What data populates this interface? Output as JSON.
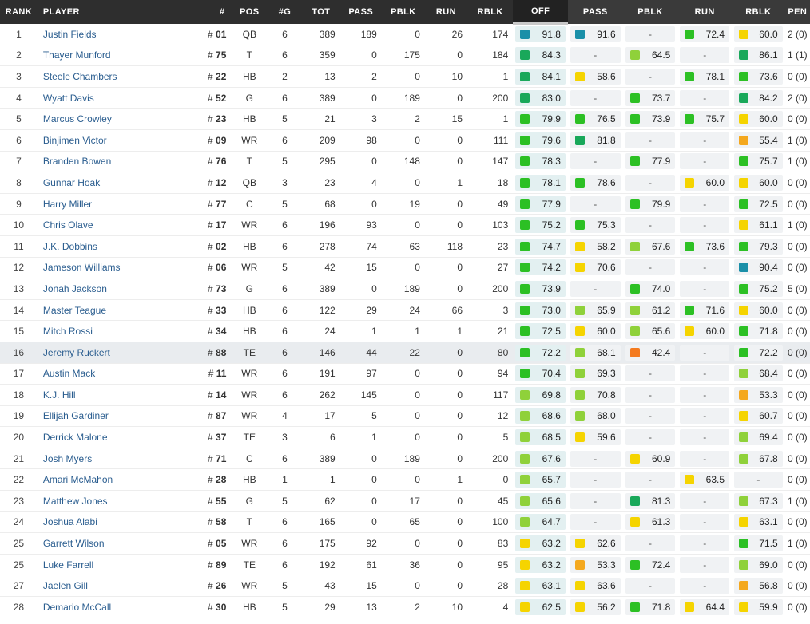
{
  "headers": {
    "rank": "RANK",
    "player": "PLAYER",
    "jersey": "#",
    "pos": "POS",
    "g": "#G",
    "tot": "TOT",
    "pass": "PASS",
    "pblk": "PBLK",
    "run": "RUN",
    "rblk": "RBLK",
    "off_grade": "OFF",
    "pass_grade": "PASS",
    "pblk_grade": "PBLK",
    "run_grade": "RUN",
    "rblk_grade": "RBLK",
    "pen": "PEN"
  },
  "colors": {
    "elite": "#1a8fa8",
    "high": "#19a85a",
    "good": "#2cc024",
    "above": "#8fd13a",
    "avg": "#f5d400",
    "below": "#f4a81e",
    "poor": "#f47b20",
    "header_bg": "#2e2e2e",
    "player_link": "#2a5d8f"
  },
  "rows": [
    {
      "rank": "1",
      "player": "Justin Fields",
      "jersey": "# 01",
      "pos": "QB",
      "g": "6",
      "tot": "389",
      "pass": "189",
      "pblk": "0",
      "run": "26",
      "rblk": "174",
      "off": "91.8",
      "off_c": "elite",
      "pass_g": "91.6",
      "pass_c": "elite",
      "pblk_g": "-",
      "pblk_c": "",
      "run_g": "72.4",
      "run_c": "good",
      "rblk_g": "60.0",
      "rblk_c": "avg",
      "pen": "2 (0)"
    },
    {
      "rank": "2",
      "player": "Thayer Munford",
      "jersey": "# 75",
      "pos": "T",
      "g": "6",
      "tot": "359",
      "pass": "0",
      "pblk": "175",
      "run": "0",
      "rblk": "184",
      "off": "84.3",
      "off_c": "high",
      "pass_g": "-",
      "pass_c": "",
      "pblk_g": "64.5",
      "pblk_c": "above",
      "run_g": "-",
      "run_c": "",
      "rblk_g": "86.1",
      "rblk_c": "high",
      "pen": "1 (1)"
    },
    {
      "rank": "3",
      "player": "Steele Chambers",
      "jersey": "# 22",
      "pos": "HB",
      "g": "2",
      "tot": "13",
      "pass": "2",
      "pblk": "0",
      "run": "10",
      "rblk": "1",
      "off": "84.1",
      "off_c": "high",
      "pass_g": "58.6",
      "pass_c": "avg",
      "pblk_g": "-",
      "pblk_c": "",
      "run_g": "78.1",
      "run_c": "good",
      "rblk_g": "73.6",
      "rblk_c": "good",
      "pen": "0 (0)"
    },
    {
      "rank": "4",
      "player": "Wyatt Davis",
      "jersey": "# 52",
      "pos": "G",
      "g": "6",
      "tot": "389",
      "pass": "0",
      "pblk": "189",
      "run": "0",
      "rblk": "200",
      "off": "83.0",
      "off_c": "high",
      "pass_g": "-",
      "pass_c": "",
      "pblk_g": "73.7",
      "pblk_c": "good",
      "run_g": "-",
      "run_c": "",
      "rblk_g": "84.2",
      "rblk_c": "high",
      "pen": "2 (0)"
    },
    {
      "rank": "5",
      "player": "Marcus Crowley",
      "jersey": "# 23",
      "pos": "HB",
      "g": "5",
      "tot": "21",
      "pass": "3",
      "pblk": "2",
      "run": "15",
      "rblk": "1",
      "off": "79.9",
      "off_c": "good",
      "pass_g": "76.5",
      "pass_c": "good",
      "pblk_g": "73.9",
      "pblk_c": "good",
      "run_g": "75.7",
      "run_c": "good",
      "rblk_g": "60.0",
      "rblk_c": "avg",
      "pen": "0 (0)"
    },
    {
      "rank": "6",
      "player": "Binjimen Victor",
      "jersey": "# 09",
      "pos": "WR",
      "g": "6",
      "tot": "209",
      "pass": "98",
      "pblk": "0",
      "run": "0",
      "rblk": "111",
      "off": "79.6",
      "off_c": "good",
      "pass_g": "81.8",
      "pass_c": "high",
      "pblk_g": "-",
      "pblk_c": "",
      "run_g": "-",
      "run_c": "",
      "rblk_g": "55.4",
      "rblk_c": "below",
      "pen": "1 (0)"
    },
    {
      "rank": "7",
      "player": "Branden Bowen",
      "jersey": "# 76",
      "pos": "T",
      "g": "5",
      "tot": "295",
      "pass": "0",
      "pblk": "148",
      "run": "0",
      "rblk": "147",
      "off": "78.3",
      "off_c": "good",
      "pass_g": "-",
      "pass_c": "",
      "pblk_g": "77.9",
      "pblk_c": "good",
      "run_g": "-",
      "run_c": "",
      "rblk_g": "75.7",
      "rblk_c": "good",
      "pen": "1 (0)"
    },
    {
      "rank": "8",
      "player": "Gunnar Hoak",
      "jersey": "# 12",
      "pos": "QB",
      "g": "3",
      "tot": "23",
      "pass": "4",
      "pblk": "0",
      "run": "1",
      "rblk": "18",
      "off": "78.1",
      "off_c": "good",
      "pass_g": "78.6",
      "pass_c": "good",
      "pblk_g": "-",
      "pblk_c": "",
      "run_g": "60.0",
      "run_c": "avg",
      "rblk_g": "60.0",
      "rblk_c": "avg",
      "pen": "0 (0)"
    },
    {
      "rank": "9",
      "player": "Harry Miller",
      "jersey": "# 77",
      "pos": "C",
      "g": "5",
      "tot": "68",
      "pass": "0",
      "pblk": "19",
      "run": "0",
      "rblk": "49",
      "off": "77.9",
      "off_c": "good",
      "pass_g": "-",
      "pass_c": "",
      "pblk_g": "79.9",
      "pblk_c": "good",
      "run_g": "-",
      "run_c": "",
      "rblk_g": "72.5",
      "rblk_c": "good",
      "pen": "0 (0)"
    },
    {
      "rank": "10",
      "player": "Chris Olave",
      "jersey": "# 17",
      "pos": "WR",
      "g": "6",
      "tot": "196",
      "pass": "93",
      "pblk": "0",
      "run": "0",
      "rblk": "103",
      "off": "75.2",
      "off_c": "good",
      "pass_g": "75.3",
      "pass_c": "good",
      "pblk_g": "-",
      "pblk_c": "",
      "run_g": "-",
      "run_c": "",
      "rblk_g": "61.1",
      "rblk_c": "avg",
      "pen": "1 (0)"
    },
    {
      "rank": "11",
      "player": "J.K. Dobbins",
      "jersey": "# 02",
      "pos": "HB",
      "g": "6",
      "tot": "278",
      "pass": "74",
      "pblk": "63",
      "run": "118",
      "rblk": "23",
      "off": "74.7",
      "off_c": "good",
      "pass_g": "58.2",
      "pass_c": "avg",
      "pblk_g": "67.6",
      "pblk_c": "above",
      "run_g": "73.6",
      "run_c": "good",
      "rblk_g": "79.3",
      "rblk_c": "good",
      "pen": "0 (0)"
    },
    {
      "rank": "12",
      "player": "Jameson Williams",
      "jersey": "# 06",
      "pos": "WR",
      "g": "5",
      "tot": "42",
      "pass": "15",
      "pblk": "0",
      "run": "0",
      "rblk": "27",
      "off": "74.2",
      "off_c": "good",
      "pass_g": "70.6",
      "pass_c": "avg",
      "pblk_g": "-",
      "pblk_c": "",
      "run_g": "-",
      "run_c": "",
      "rblk_g": "90.4",
      "rblk_c": "elite",
      "pen": "0 (0)"
    },
    {
      "rank": "13",
      "player": "Jonah Jackson",
      "jersey": "# 73",
      "pos": "G",
      "g": "6",
      "tot": "389",
      "pass": "0",
      "pblk": "189",
      "run": "0",
      "rblk": "200",
      "off": "73.9",
      "off_c": "good",
      "pass_g": "-",
      "pass_c": "",
      "pblk_g": "74.0",
      "pblk_c": "good",
      "run_g": "-",
      "run_c": "",
      "rblk_g": "75.2",
      "rblk_c": "good",
      "pen": "5 (0)"
    },
    {
      "rank": "14",
      "player": "Master Teague",
      "jersey": "# 33",
      "pos": "HB",
      "g": "6",
      "tot": "122",
      "pass": "29",
      "pblk": "24",
      "run": "66",
      "rblk": "3",
      "off": "73.0",
      "off_c": "good",
      "pass_g": "65.9",
      "pass_c": "above",
      "pblk_g": "61.2",
      "pblk_c": "above",
      "run_g": "71.6",
      "run_c": "good",
      "rblk_g": "60.0",
      "rblk_c": "avg",
      "pen": "0 (0)"
    },
    {
      "rank": "15",
      "player": "Mitch Rossi",
      "jersey": "# 34",
      "pos": "HB",
      "g": "6",
      "tot": "24",
      "pass": "1",
      "pblk": "1",
      "run": "1",
      "rblk": "21",
      "off": "72.5",
      "off_c": "good",
      "pass_g": "60.0",
      "pass_c": "avg",
      "pblk_g": "65.6",
      "pblk_c": "above",
      "run_g": "60.0",
      "run_c": "avg",
      "rblk_g": "71.8",
      "rblk_c": "good",
      "pen": "0 (0)"
    },
    {
      "rank": "16",
      "player": "Jeremy Ruckert",
      "jersey": "# 88",
      "pos": "TE",
      "g": "6",
      "tot": "146",
      "pass": "44",
      "pblk": "22",
      "run": "0",
      "rblk": "80",
      "off": "72.2",
      "off_c": "good",
      "pass_g": "68.1",
      "pass_c": "above",
      "pblk_g": "42.4",
      "pblk_c": "poor",
      "run_g": "-",
      "run_c": "",
      "rblk_g": "72.2",
      "rblk_c": "good",
      "pen": "0 (0)"
    },
    {
      "rank": "17",
      "player": "Austin Mack",
      "jersey": "# 11",
      "pos": "WR",
      "g": "6",
      "tot": "191",
      "pass": "97",
      "pblk": "0",
      "run": "0",
      "rblk": "94",
      "off": "70.4",
      "off_c": "good",
      "pass_g": "69.3",
      "pass_c": "above",
      "pblk_g": "-",
      "pblk_c": "",
      "run_g": "-",
      "run_c": "",
      "rblk_g": "68.4",
      "rblk_c": "above",
      "pen": "0 (0)"
    },
    {
      "rank": "18",
      "player": "K.J. Hill",
      "jersey": "# 14",
      "pos": "WR",
      "g": "6",
      "tot": "262",
      "pass": "145",
      "pblk": "0",
      "run": "0",
      "rblk": "117",
      "off": "69.8",
      "off_c": "above",
      "pass_g": "70.8",
      "pass_c": "above",
      "pblk_g": "-",
      "pblk_c": "",
      "run_g": "-",
      "run_c": "",
      "rblk_g": "53.3",
      "rblk_c": "below",
      "pen": "0 (0)"
    },
    {
      "rank": "19",
      "player": "Ellijah Gardiner",
      "jersey": "# 87",
      "pos": "WR",
      "g": "4",
      "tot": "17",
      "pass": "5",
      "pblk": "0",
      "run": "0",
      "rblk": "12",
      "off": "68.6",
      "off_c": "above",
      "pass_g": "68.0",
      "pass_c": "above",
      "pblk_g": "-",
      "pblk_c": "",
      "run_g": "-",
      "run_c": "",
      "rblk_g": "60.7",
      "rblk_c": "avg",
      "pen": "0 (0)"
    },
    {
      "rank": "20",
      "player": "Derrick Malone",
      "jersey": "# 37",
      "pos": "TE",
      "g": "3",
      "tot": "6",
      "pass": "1",
      "pblk": "0",
      "run": "0",
      "rblk": "5",
      "off": "68.5",
      "off_c": "above",
      "pass_g": "59.6",
      "pass_c": "avg",
      "pblk_g": "-",
      "pblk_c": "",
      "run_g": "-",
      "run_c": "",
      "rblk_g": "69.4",
      "rblk_c": "above",
      "pen": "0 (0)"
    },
    {
      "rank": "21",
      "player": "Josh Myers",
      "jersey": "# 71",
      "pos": "C",
      "g": "6",
      "tot": "389",
      "pass": "0",
      "pblk": "189",
      "run": "0",
      "rblk": "200",
      "off": "67.6",
      "off_c": "above",
      "pass_g": "-",
      "pass_c": "",
      "pblk_g": "60.9",
      "pblk_c": "avg",
      "run_g": "-",
      "run_c": "",
      "rblk_g": "67.8",
      "rblk_c": "above",
      "pen": "0 (0)"
    },
    {
      "rank": "22",
      "player": "Amari McMahon",
      "jersey": "# 28",
      "pos": "HB",
      "g": "1",
      "tot": "1",
      "pass": "0",
      "pblk": "0",
      "run": "1",
      "rblk": "0",
      "off": "65.7",
      "off_c": "above",
      "pass_g": "-",
      "pass_c": "",
      "pblk_g": "-",
      "pblk_c": "",
      "run_g": "63.5",
      "run_c": "avg",
      "rblk_g": "-",
      "rblk_c": "",
      "pen": "0 (0)"
    },
    {
      "rank": "23",
      "player": "Matthew Jones",
      "jersey": "# 55",
      "pos": "G",
      "g": "5",
      "tot": "62",
      "pass": "0",
      "pblk": "17",
      "run": "0",
      "rblk": "45",
      "off": "65.6",
      "off_c": "above",
      "pass_g": "-",
      "pass_c": "",
      "pblk_g": "81.3",
      "pblk_c": "high",
      "run_g": "-",
      "run_c": "",
      "rblk_g": "67.3",
      "rblk_c": "above",
      "pen": "1 (0)"
    },
    {
      "rank": "24",
      "player": "Joshua Alabi",
      "jersey": "# 58",
      "pos": "T",
      "g": "6",
      "tot": "165",
      "pass": "0",
      "pblk": "65",
      "run": "0",
      "rblk": "100",
      "off": "64.7",
      "off_c": "above",
      "pass_g": "-",
      "pass_c": "",
      "pblk_g": "61.3",
      "pblk_c": "avg",
      "run_g": "-",
      "run_c": "",
      "rblk_g": "63.1",
      "rblk_c": "avg",
      "pen": "0 (0)"
    },
    {
      "rank": "25",
      "player": "Garrett Wilson",
      "jersey": "# 05",
      "pos": "WR",
      "g": "6",
      "tot": "175",
      "pass": "92",
      "pblk": "0",
      "run": "0",
      "rblk": "83",
      "off": "63.2",
      "off_c": "avg",
      "pass_g": "62.6",
      "pass_c": "avg",
      "pblk_g": "-",
      "pblk_c": "",
      "run_g": "-",
      "run_c": "",
      "rblk_g": "71.5",
      "rblk_c": "good",
      "pen": "1 (0)"
    },
    {
      "rank": "25",
      "player": "Luke Farrell",
      "jersey": "# 89",
      "pos": "TE",
      "g": "6",
      "tot": "192",
      "pass": "61",
      "pblk": "36",
      "run": "0",
      "rblk": "95",
      "off": "63.2",
      "off_c": "avg",
      "pass_g": "53.3",
      "pass_c": "below",
      "pblk_g": "72.4",
      "pblk_c": "good",
      "run_g": "-",
      "run_c": "",
      "rblk_g": "69.0",
      "rblk_c": "above",
      "pen": "0 (0)"
    },
    {
      "rank": "27",
      "player": "Jaelen Gill",
      "jersey": "# 26",
      "pos": "WR",
      "g": "5",
      "tot": "43",
      "pass": "15",
      "pblk": "0",
      "run": "0",
      "rblk": "28",
      "off": "63.1",
      "off_c": "avg",
      "pass_g": "63.6",
      "pass_c": "avg",
      "pblk_g": "-",
      "pblk_c": "",
      "run_g": "-",
      "run_c": "",
      "rblk_g": "56.8",
      "rblk_c": "below",
      "pen": "0 (0)"
    },
    {
      "rank": "28",
      "player": "Demario McCall",
      "jersey": "# 30",
      "pos": "HB",
      "g": "5",
      "tot": "29",
      "pass": "13",
      "pblk": "2",
      "run": "10",
      "rblk": "4",
      "off": "62.5",
      "off_c": "avg",
      "pass_g": "56.2",
      "pass_c": "avg",
      "pblk_g": "71.8",
      "pblk_c": "good",
      "run_g": "64.4",
      "run_c": "avg",
      "rblk_g": "59.9",
      "rblk_c": "avg",
      "pen": "0 (0)"
    }
  ]
}
